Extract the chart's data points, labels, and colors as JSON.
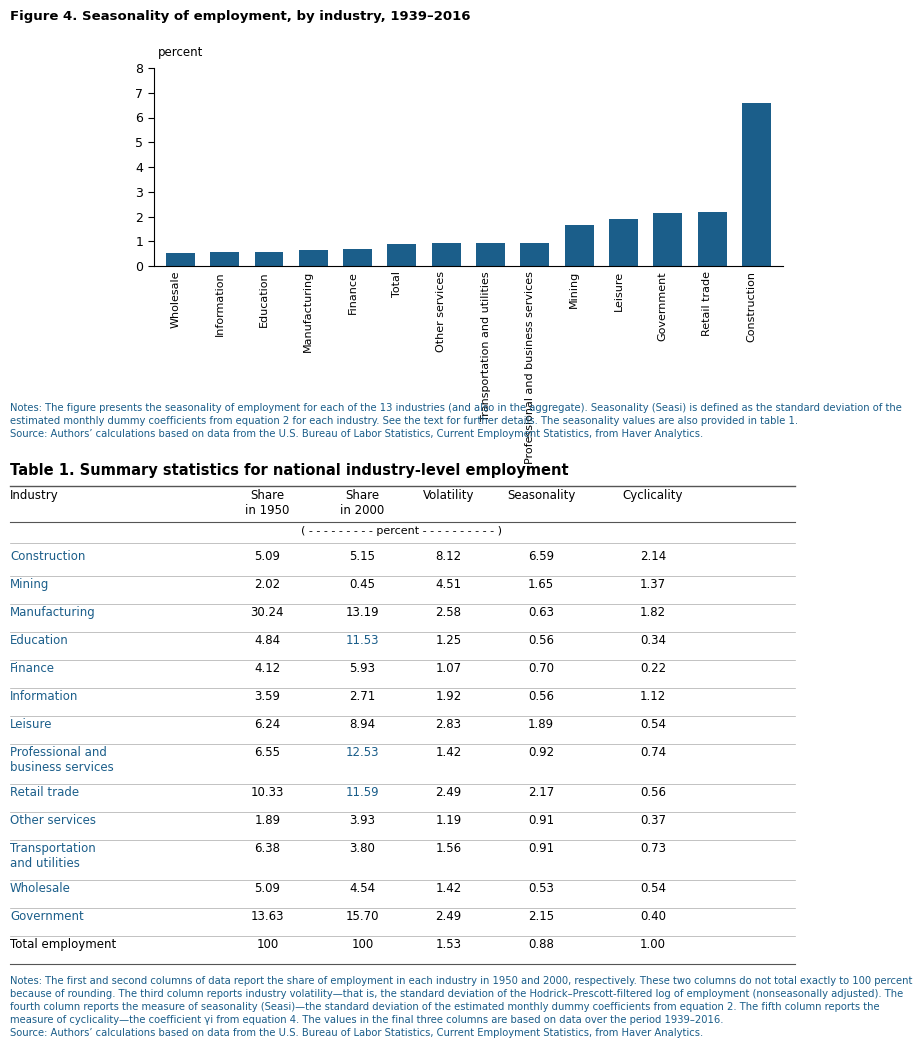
{
  "figure_title": "Figure 4. Seasonality of employment, by industry, 1939–2016",
  "bar_categories": [
    "Wholesale",
    "Information",
    "Education",
    "Manufacturing",
    "Finance",
    "Total",
    "Other services",
    "Transportation and utilities",
    "Professional and business services",
    "Mining",
    "Leisure",
    "Government",
    "Retail trade",
    "Construction"
  ],
  "bar_values": [
    0.53,
    0.56,
    0.56,
    0.63,
    0.7,
    0.88,
    0.91,
    0.91,
    0.92,
    1.65,
    1.89,
    2.15,
    2.17,
    6.59
  ],
  "bar_color": "#1b5e8a",
  "bar_ylabel": "percent",
  "bar_ylim": [
    0,
    8
  ],
  "bar_yticks": [
    0,
    1,
    2,
    3,
    4,
    5,
    6,
    7,
    8
  ],
  "figure_note_line1": "Notes: The figure presents the seasonality of employment for each of the 13 industries (and also in the aggregate). Seasonality (Seasi) is defined as the standard deviation of the",
  "figure_note_line2": "estimated monthly dummy coefficients from equation 2 for each industry. See the text for further details. The seasonality values are also provided in table 1.",
  "figure_source_line": "Source: Authors’ calculations based on data from the U.S. Bureau of Labor Statistics, Current Employment Statistics, from Haver Analytics.",
  "table_title": "Table 1. Summary statistics for national industry-level employment",
  "table_col_headers": [
    "Industry",
    "Share\nin 1950",
    "Share\nin 2000",
    "Volatility",
    "Seasonality",
    "Cyclicality"
  ],
  "table_subheader": "( - - - - - - - - - percent - - - - - - - - - - )",
  "table_rows": [
    [
      "Construction",
      "5.09",
      "5.15",
      "8.12",
      "6.59",
      "2.14"
    ],
    [
      "Mining",
      "2.02",
      "0.45",
      "4.51",
      "1.65",
      "1.37"
    ],
    [
      "Manufacturing",
      "30.24",
      "13.19",
      "2.58",
      "0.63",
      "1.82"
    ],
    [
      "Education",
      "4.84",
      "11.53",
      "1.25",
      "0.56",
      "0.34"
    ],
    [
      "Finance",
      "4.12",
      "5.93",
      "1.07",
      "0.70",
      "0.22"
    ],
    [
      "Information",
      "3.59",
      "2.71",
      "1.92",
      "0.56",
      "1.12"
    ],
    [
      "Leisure",
      "6.24",
      "8.94",
      "2.83",
      "1.89",
      "0.54"
    ],
    [
      "Professional and\nbusiness services",
      "6.55",
      "12.53",
      "1.42",
      "0.92",
      "0.74"
    ],
    [
      "Retail trade",
      "10.33",
      "11.59",
      "2.49",
      "2.17",
      "0.56"
    ],
    [
      "Other services",
      "1.89",
      "3.93",
      "1.19",
      "0.91",
      "0.37"
    ],
    [
      "Transportation\nand utilities",
      "6.38",
      "3.80",
      "1.56",
      "0.91",
      "0.73"
    ],
    [
      "Wholesale",
      "5.09",
      "4.54",
      "1.42",
      "0.53",
      "0.54"
    ],
    [
      "Government",
      "13.63",
      "15.70",
      "2.49",
      "2.15",
      "0.40"
    ],
    [
      "Total employment",
      "100",
      "100",
      "1.53",
      "0.88",
      "1.00"
    ]
  ],
  "share2000_blue_indices": [
    3,
    7,
    8
  ],
  "industry_color": "#1b5e8a",
  "black": "#000000",
  "note_color": "#1b5e8a",
  "bg_color": "#ffffff",
  "table_note_lines": [
    "Notes: The first and second columns of data report the share of employment in each industry in 1950 and 2000, respectively. These two columns do not total exactly to 100 percent",
    "because of rounding. The third column reports industry volatility—that is, the standard deviation of the Hodrick–Prescott-filtered log of employment (nonseasonally adjusted). The",
    "fourth column reports the measure of seasonality (Seasi)—the standard deviation of the estimated monthly dummy coefficients from equation 2. The fifth column reports the",
    "measure of cyclicality—the coefficient γi from equation 4. The values in the final three columns are based on data over the period 1939–2016.",
    "Source: Authors’ calculations based on data from the U.S. Bureau of Labor Statistics, Current Employment Statistics, from Haver Analytics."
  ]
}
